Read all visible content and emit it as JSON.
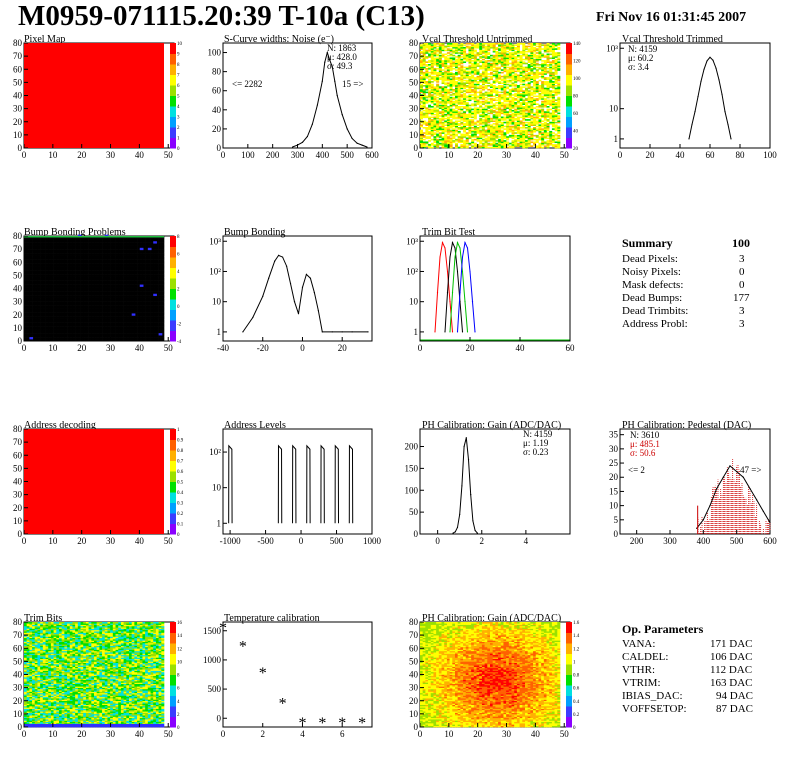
{
  "header": {
    "title": "M0959-071115.20:39 T-10a (C13)",
    "date": "Fri Nov 16 01:31:45 2007"
  },
  "summary": {
    "title": "Summary",
    "title_value": "100",
    "rows": [
      {
        "label": "Dead Pixels:",
        "value": "3"
      },
      {
        "label": "Noisy Pixels:",
        "value": "0"
      },
      {
        "label": "Mask defects:",
        "value": "0"
      },
      {
        "label": "Dead Bumps:",
        "value": "177"
      },
      {
        "label": "Dead Trimbits:",
        "value": "3"
      },
      {
        "label": "Address Probl:",
        "value": "3"
      }
    ]
  },
  "op_parameters": {
    "title": "Op. Parameters",
    "rows": [
      {
        "label": "VANA:",
        "value": "171 DAC"
      },
      {
        "label": "CALDEL:",
        "value": "106 DAC"
      },
      {
        "label": "VTHR:",
        "value": "112 DAC"
      },
      {
        "label": "VTRIM:",
        "value": "163 DAC"
      },
      {
        "label": "IBIAS_DAC:",
        "value": "94 DAC"
      },
      {
        "label": "VOFFSETOP:",
        "value": "87 DAC"
      }
    ]
  },
  "colors": {
    "map_fill": "#ff0000",
    "hist_line": "#000000",
    "pedestal_red": "#cc0000",
    "trim_red": "#ff0000",
    "trim_green": "#00c000",
    "trim_blue": "#0000ff"
  },
  "chart_data": [
    {
      "id": "pixel-map",
      "type": "heatmap",
      "title": "Pixel Map",
      "xlim": [
        0,
        52
      ],
      "ylim": [
        0,
        80
      ],
      "xticks": [
        "0",
        "10",
        "20",
        "30",
        "40",
        "50"
      ],
      "yticks": [
        "0",
        "10",
        "20",
        "30",
        "40",
        "50",
        "60",
        "70",
        "80"
      ],
      "zticks": [
        "0",
        "1",
        "2",
        "3",
        "4",
        "5",
        "6",
        "7",
        "8",
        "9",
        "10"
      ],
      "fill": "uniform-red"
    },
    {
      "id": "scurve-widths",
      "type": "line",
      "title": "S-Curve widths: Noise (e⁻)",
      "xlim": [
        0,
        600
      ],
      "ylim": [
        0,
        110
      ],
      "xticks": [
        "0",
        "100",
        "200",
        "300",
        "400",
        "500",
        "600"
      ],
      "yticks": [
        "0",
        "20",
        "40",
        "60",
        "80",
        "100"
      ],
      "stats": [
        "N: 1863",
        "μ: 428.0",
        "σ: 49.3"
      ],
      "underflow": "<= 2282",
      "overflow": "15 =>",
      "x": [
        280,
        300,
        320,
        340,
        360,
        380,
        400,
        410,
        420,
        430,
        440,
        450,
        460,
        480,
        500,
        520,
        540,
        560,
        580
      ],
      "values": [
        1,
        3,
        6,
        12,
        25,
        45,
        70,
        90,
        100,
        92,
        85,
        70,
        55,
        35,
        20,
        10,
        5,
        3,
        1
      ]
    },
    {
      "id": "vcal-untrimmed",
      "type": "heatmap",
      "title": "Vcal Threshold Untrimmed",
      "xlim": [
        0,
        52
      ],
      "ylim": [
        0,
        80
      ],
      "xticks": [
        "0",
        "10",
        "20",
        "30",
        "40",
        "50"
      ],
      "yticks": [
        "0",
        "10",
        "20",
        "30",
        "40",
        "50",
        "60",
        "70",
        "80"
      ],
      "zticks": [
        "20",
        "40",
        "60",
        "80",
        "100",
        "120",
        "140"
      ]
    },
    {
      "id": "vcal-trimmed",
      "type": "line",
      "title": "Vcal Threshold Trimmed",
      "log_y": true,
      "xlim": [
        0,
        100
      ],
      "xticks": [
        "0",
        "20",
        "40",
        "60",
        "80",
        "100"
      ],
      "yticks": [
        "1",
        "10",
        "10³"
      ],
      "stats": [
        "N: 4159",
        "μ: 60.2",
        "σ: 3.4"
      ],
      "x": [
        46,
        48,
        50,
        52,
        54,
        56,
        58,
        60,
        62,
        64,
        66,
        68,
        70,
        72,
        74
      ],
      "values": [
        1,
        3,
        8,
        25,
        80,
        200,
        380,
        500,
        400,
        220,
        90,
        30,
        8,
        3,
        1
      ]
    },
    {
      "id": "bump-bonding-problems",
      "type": "heatmap",
      "title": "Bump Bonding Problems",
      "xlim": [
        0,
        52
      ],
      "ylim": [
        0,
        80
      ],
      "xticks": [
        "0",
        "10",
        "20",
        "30",
        "40",
        "50"
      ],
      "yticks": [
        "0",
        "10",
        "20",
        "30",
        "40",
        "50",
        "60",
        "70",
        "80"
      ],
      "zticks": [
        "-4",
        "-2",
        "0",
        "2",
        "4",
        "6",
        "8"
      ]
    },
    {
      "id": "bump-bonding",
      "type": "line",
      "title": "Bump Bonding",
      "log_y": true,
      "xlim": [
        -40,
        35
      ],
      "xticks": [
        "-40",
        "-20",
        "0",
        "20"
      ],
      "yticks": [
        "1",
        "10",
        "10²",
        "10³"
      ],
      "x": [
        -30,
        -25,
        -20,
        -17,
        -14,
        -12,
        -10,
        -8,
        -6,
        -4,
        -2,
        0,
        2,
        4,
        6,
        8,
        10,
        15,
        20,
        25,
        33
      ],
      "values": [
        1,
        3,
        15,
        60,
        220,
        340,
        300,
        150,
        40,
        10,
        4,
        30,
        80,
        60,
        20,
        5,
        1,
        1,
        1,
        1,
        1
      ]
    },
    {
      "id": "trim-bit-test",
      "type": "line",
      "title": "Trim Bit Test",
      "log_y": true,
      "xlim": [
        0,
        60
      ],
      "xticks": [
        "0",
        "20",
        "40",
        "60"
      ],
      "yticks": [
        "1",
        "10",
        "10²",
        "10³"
      ],
      "series": [
        {
          "x": [
            6,
            7,
            8,
            9,
            10,
            11,
            12,
            13
          ],
          "values": [
            1,
            20,
            300,
            900,
            600,
            100,
            10,
            1
          ]
        },
        {
          "x": [
            10,
            11,
            12,
            13,
            14,
            15,
            16,
            17
          ],
          "values": [
            1,
            20,
            300,
            900,
            600,
            100,
            10,
            1
          ]
        },
        {
          "x": [
            12,
            13,
            14,
            15,
            16,
            17,
            18,
            19
          ],
          "values": [
            1,
            20,
            300,
            900,
            600,
            100,
            10,
            1
          ]
        },
        {
          "x": [
            15,
            16,
            17,
            18,
            19,
            20,
            21,
            22
          ],
          "values": [
            1,
            20,
            300,
            900,
            600,
            100,
            10,
            1
          ]
        }
      ]
    },
    {
      "id": "address-decoding",
      "type": "heatmap",
      "title": "Address decoding",
      "xlim": [
        0,
        52
      ],
      "ylim": [
        0,
        80
      ],
      "xticks": [
        "0",
        "10",
        "20",
        "30",
        "40",
        "50"
      ],
      "yticks": [
        "0",
        "10",
        "20",
        "30",
        "40",
        "50",
        "60",
        "70",
        "80"
      ],
      "zticks": [
        "0",
        "0.1",
        "0.2",
        "0.3",
        "0.4",
        "0.5",
        "0.6",
        "0.7",
        "0.8",
        "0.9",
        "1"
      ],
      "fill": "uniform-red"
    },
    {
      "id": "address-levels",
      "type": "line",
      "title": "Address Levels",
      "log_y": true,
      "xlim": [
        -1100,
        1000
      ],
      "xticks": [
        "-1000",
        "-500",
        "0",
        "500",
        "1000"
      ],
      "yticks": [
        "1",
        "10",
        "10²"
      ],
      "peaks": [
        -1000,
        -300,
        -100,
        100,
        300,
        500,
        700
      ]
    },
    {
      "id": "ph-gain",
      "type": "line",
      "title": "PH Calibration: Gain (ADC/DAC)",
      "xlim": [
        -0.8,
        6
      ],
      "ylim": [
        0,
        240
      ],
      "xticks": [
        "0",
        "2",
        "4"
      ],
      "yticks": [
        "0",
        "50",
        "100",
        "150",
        "200"
      ],
      "stats": [
        "N: 4159",
        "μ: 1.19",
        "σ: 0.23"
      ],
      "x": [
        0.7,
        0.8,
        0.9,
        1.0,
        1.1,
        1.2,
        1.3,
        1.4,
        1.5,
        1.6,
        1.7,
        1.8
      ],
      "values": [
        2,
        5,
        15,
        45,
        110,
        200,
        220,
        170,
        90,
        30,
        8,
        2
      ]
    },
    {
      "id": "ph-pedestal",
      "type": "line",
      "title": "PH Calibration: Pedestal (DAC)",
      "xlim": [
        150,
        600
      ],
      "ylim": [
        0,
        37
      ],
      "xticks": [
        "200",
        "300",
        "400",
        "500",
        "600"
      ],
      "yticks": [
        "0",
        "5",
        "10",
        "15",
        "20",
        "25",
        "30",
        "35"
      ],
      "stats": [
        "N: 3610",
        "μ: 485.1",
        "σ: 50.6"
      ],
      "underflow": "<= 2",
      "overflow": "47 =>",
      "x": [
        380,
        400,
        420,
        440,
        460,
        480,
        500,
        520,
        540,
        560,
        580,
        600
      ],
      "values": [
        2,
        5,
        10,
        16,
        20,
        24,
        22,
        20,
        16,
        12,
        8,
        4
      ]
    },
    {
      "id": "trim-bits",
      "type": "heatmap",
      "title": "Trim Bits",
      "xlim": [
        0,
        52
      ],
      "ylim": [
        0,
        80
      ],
      "xticks": [
        "0",
        "10",
        "20",
        "30",
        "40",
        "50"
      ],
      "yticks": [
        "0",
        "10",
        "20",
        "30",
        "40",
        "50",
        "60",
        "70",
        "80"
      ],
      "zticks": [
        "0",
        "2",
        "4",
        "6",
        "8",
        "10",
        "12",
        "14",
        "16"
      ]
    },
    {
      "id": "temperature-calibration",
      "type": "scatter",
      "title": "Temperature calibration",
      "xlim": [
        0,
        7.5
      ],
      "ylim": [
        -150,
        1650
      ],
      "xticks": [
        "0",
        "2",
        "4",
        "6"
      ],
      "yticks": [
        "0",
        "500",
        "1000",
        "1500"
      ],
      "x": [
        0,
        1,
        2,
        3,
        4,
        5,
        6,
        7
      ],
      "values": [
        1550,
        1230,
        780,
        250,
        -80,
        -80,
        -80,
        -80
      ]
    },
    {
      "id": "ph-gain-map",
      "type": "heatmap",
      "title": "PH Calibration: Gain (ADC/DAC)",
      "xlim": [
        0,
        52
      ],
      "ylim": [
        0,
        80
      ],
      "xticks": [
        "0",
        "10",
        "20",
        "30",
        "40",
        "50"
      ],
      "yticks": [
        "0",
        "10",
        "20",
        "30",
        "40",
        "50",
        "60",
        "70",
        "80"
      ],
      "zticks": [
        "0",
        "0.2",
        "0.4",
        "0.6",
        "0.8",
        "1",
        "1.2",
        "1.4",
        "1.6"
      ]
    }
  ]
}
